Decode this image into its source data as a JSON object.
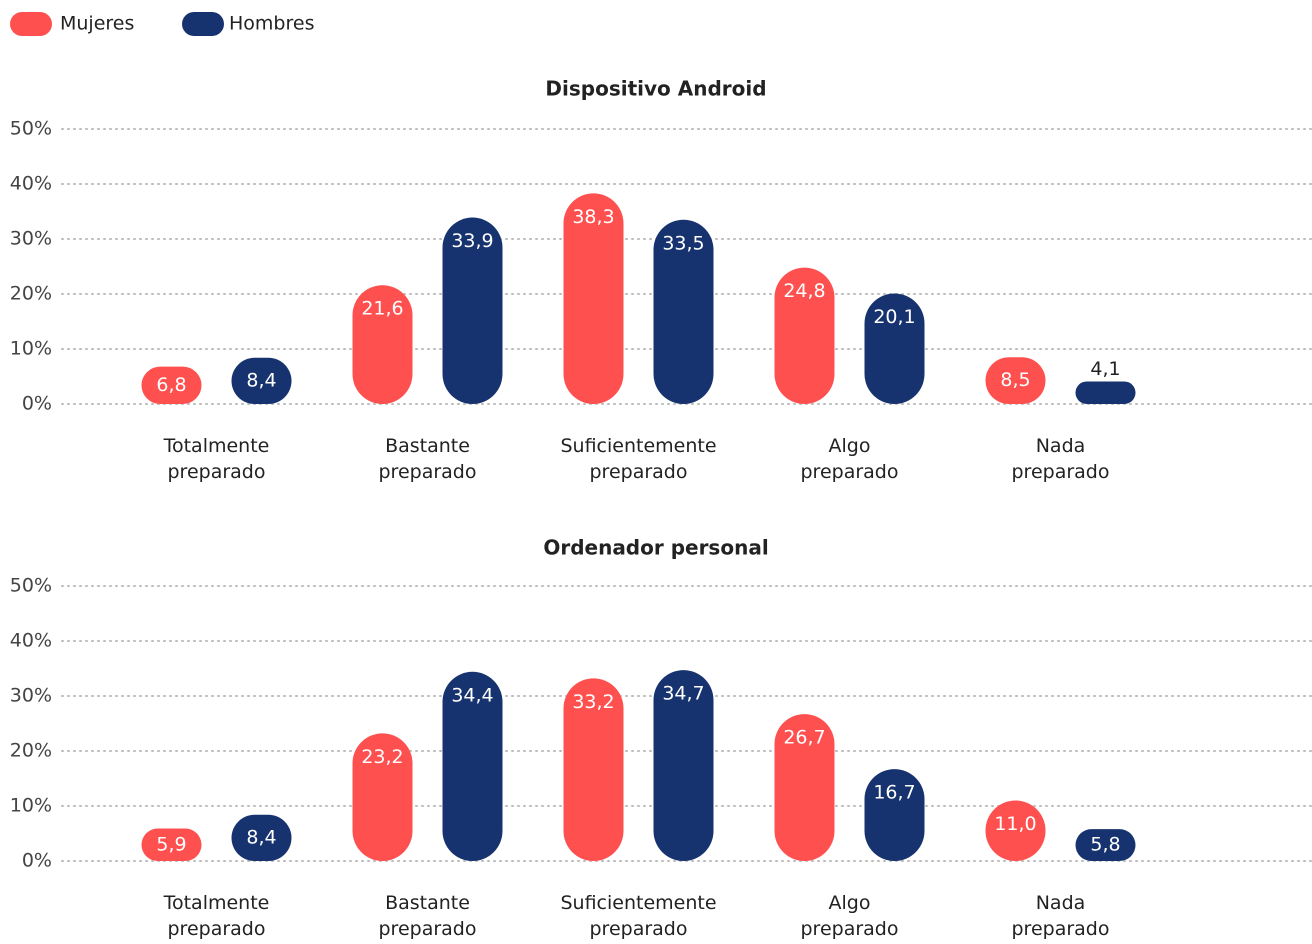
{
  "legend": [
    {
      "name": "Mujeres",
      "color": "#ff5050"
    },
    {
      "name": "Hombres",
      "color": "#17336f"
    }
  ],
  "chart_data": [
    {
      "type": "bar",
      "title": "Dispositivo Android",
      "categories": [
        "Totalmente preparado",
        "Bastante preparado",
        "Suficientemente preparado",
        "Algo preparado",
        "Nada preparado"
      ],
      "series": [
        {
          "values": [
            6.8,
            21.6,
            38.3,
            24.8,
            8.5
          ],
          "value_labels": [
            "6,8",
            "21,6",
            "38,3",
            "24,8",
            "8,5"
          ]
        },
        {
          "values": [
            8.4,
            33.9,
            33.5,
            20.1,
            4.1
          ],
          "value_labels": [
            "8,4",
            "33,9",
            "33,5",
            "20,1",
            "4,1"
          ]
        }
      ],
      "ylim": [
        0,
        50
      ],
      "yticks": [
        {
          "value": 0,
          "label": "0%"
        },
        {
          "value": 10,
          "label": "10%"
        },
        {
          "value": 20,
          "label": "20%"
        },
        {
          "value": 30,
          "label": "30%"
        },
        {
          "value": 40,
          "label": "40%"
        },
        {
          "value": 50,
          "label": "50%"
        }
      ],
      "grid": true
    },
    {
      "type": "bar",
      "title": "Ordenador personal",
      "categories": [
        "Totalmente preparado",
        "Bastante preparado",
        "Suficientemente preparado",
        "Algo preparado",
        "Nada preparado"
      ],
      "series": [
        {
          "values": [
            5.9,
            23.2,
            33.2,
            26.7,
            11.0
          ],
          "value_labels": [
            "5,9",
            "23,2",
            "33,2",
            "26,7",
            "11,0"
          ]
        },
        {
          "values": [
            8.4,
            34.4,
            34.7,
            16.7,
            5.8
          ],
          "value_labels": [
            "8,4",
            "34,4",
            "34,7",
            "16,7",
            "5,8"
          ]
        }
      ],
      "ylim": [
        0,
        50
      ],
      "yticks": [
        {
          "value": 0,
          "label": "0%"
        },
        {
          "value": 10,
          "label": "10%"
        },
        {
          "value": 20,
          "label": "20%"
        },
        {
          "value": 30,
          "label": "30%"
        },
        {
          "value": 40,
          "label": "40%"
        },
        {
          "value": 50,
          "label": "50%"
        }
      ],
      "grid": true
    }
  ]
}
